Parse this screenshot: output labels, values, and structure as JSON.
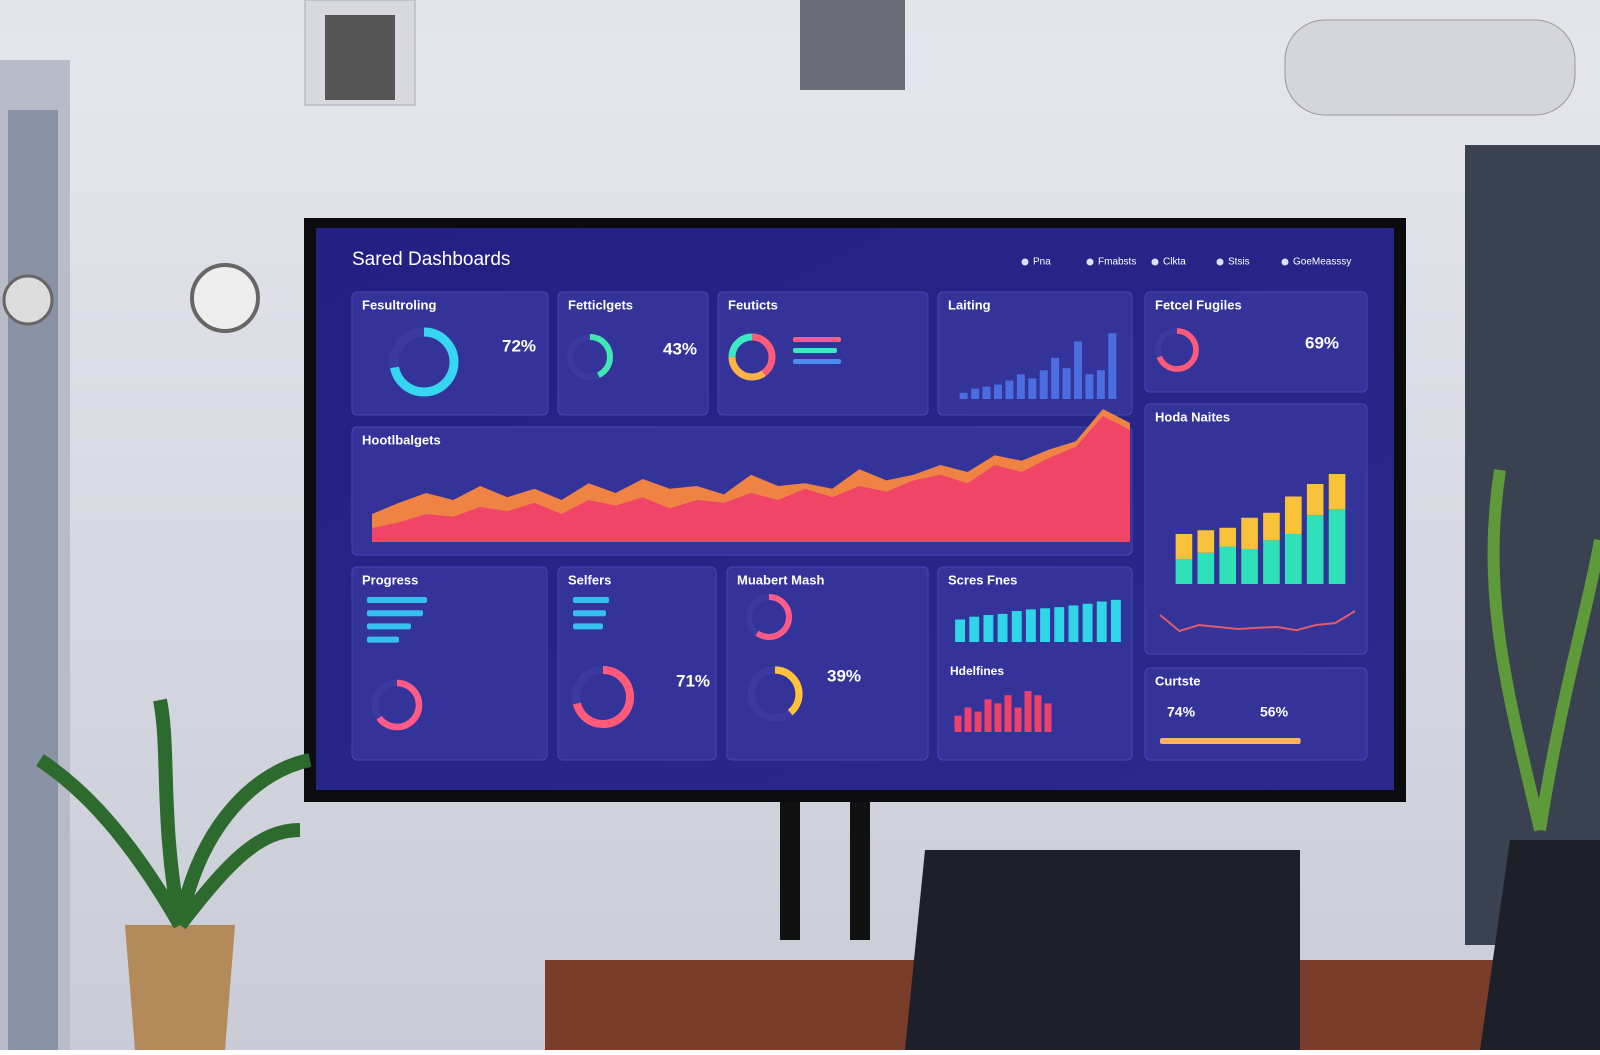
{
  "header": {
    "title": "Sared Dashboards",
    "nav": [
      "Pna",
      "Fmabsts",
      "Clkta",
      "Stsis",
      "GoeMeasssy"
    ]
  },
  "widgets": [
    {
      "title": "Fesultroling",
      "donut": {
        "value": 72,
        "label": "72%",
        "color": "#36d6f0"
      }
    },
    {
      "title": "Fetticlgets",
      "donut": {
        "value": 43,
        "label": "43%",
        "color": "#3ee8b0"
      }
    },
    {
      "title": "Feuticts",
      "pie": {
        "values": [
          40,
          35,
          25
        ],
        "colors": [
          "#ff5a7a",
          "#ffb347",
          "#3ee8c0"
        ]
      },
      "hbars": {
        "values": [
          60,
          55,
          60
        ],
        "xlim": [
          0,
          100
        ],
        "colors": [
          "#ff5a88",
          "#3ee8c0",
          "#4a8cf0"
        ]
      }
    },
    {
      "title": "Laiting",
      "bars": {
        "values": [
          3,
          5,
          6,
          7,
          9,
          12,
          10,
          14,
          20,
          15,
          28,
          12,
          14,
          32
        ],
        "ylim": [
          0,
          35
        ],
        "color": "#4a6ee0"
      }
    },
    {
      "title": "Fetcel Fugiles",
      "donut": {
        "value": 69,
        "label": "69%",
        "color": "#ff5a7a"
      }
    },
    {
      "title": "Hootlbalgets",
      "area": {
        "ylim": [
          0,
          100
        ],
        "series": [
          {
            "color": "#ff8a3d",
            "values": [
              20,
              28,
              35,
              30,
              40,
              32,
              38,
              30,
              42,
              35,
              45,
              38,
              40,
              34,
              48,
              40,
              42,
              38,
              52,
              44,
              48,
              55,
              50,
              62,
              58,
              66,
              72,
              95,
              85
            ]
          },
          {
            "color": "#f0406a",
            "values": [
              10,
              14,
              20,
              18,
              25,
              22,
              28,
              20,
              30,
              26,
              32,
              24,
              30,
              28,
              35,
              30,
              38,
              32,
              40,
              36,
              44,
              48,
              42,
              55,
              50,
              60,
              68,
              90,
              80
            ]
          }
        ]
      }
    },
    {
      "title": "Hoda Naites",
      "stacked": {
        "ylim": [
          0,
          100
        ],
        "series": [
          {
            "color": "#2fe0b8",
            "values": [
              20,
              25,
              30,
              28,
              35,
              40,
              55,
              60
            ]
          },
          {
            "color": "#f8c23a",
            "values": [
              20,
              18,
              15,
              25,
              22,
              30,
              25,
              28
            ]
          }
        ]
      },
      "line": {
        "ylim": [
          0,
          100
        ],
        "color": "#e05a6a",
        "values": [
          60,
          20,
          35,
          30,
          25,
          28,
          30,
          22,
          35,
          40,
          70
        ]
      }
    },
    {
      "title": "Progress",
      "hbars": {
        "values": [
          75,
          70,
          55,
          40
        ],
        "xlim": [
          0,
          100
        ],
        "color": "#36c0f0"
      },
      "donut": {
        "value": 65,
        "color": "#ff5a88"
      }
    },
    {
      "title": "Selfers",
      "hbars": {
        "values": [
          60,
          55,
          50
        ],
        "xlim": [
          0,
          100
        ],
        "color": "#36c0f0"
      },
      "donut": {
        "value": 71,
        "label": "71%",
        "color": "#ff5a7a"
      }
    },
    {
      "title": "Muabert Mash",
      "donut": {
        "value": 60,
        "color": "#ff5a88"
      },
      "donut2": {
        "value": 39,
        "label": "39%",
        "color": "#ffc23a"
      }
    },
    {
      "title": "Scres Fnes",
      "bars": {
        "values": [
          40,
          45,
          48,
          50,
          55,
          58,
          60,
          62,
          65,
          68,
          72,
          75
        ],
        "ylim": [
          0,
          80
        ],
        "color": "#2fd6e8"
      },
      "title2": "Hdelfines",
      "bars2": {
        "values": [
          20,
          30,
          25,
          40,
          35,
          45,
          30,
          50,
          45,
          35
        ],
        "ylim": [
          0,
          55
        ],
        "color": "#f0406a"
      }
    },
    {
      "title": "Curtste",
      "labels": [
        "74%",
        "56%"
      ],
      "hbars": {
        "values": [
          74
        ],
        "xlim": [
          0,
          100
        ],
        "color": "#ffb060"
      }
    }
  ]
}
